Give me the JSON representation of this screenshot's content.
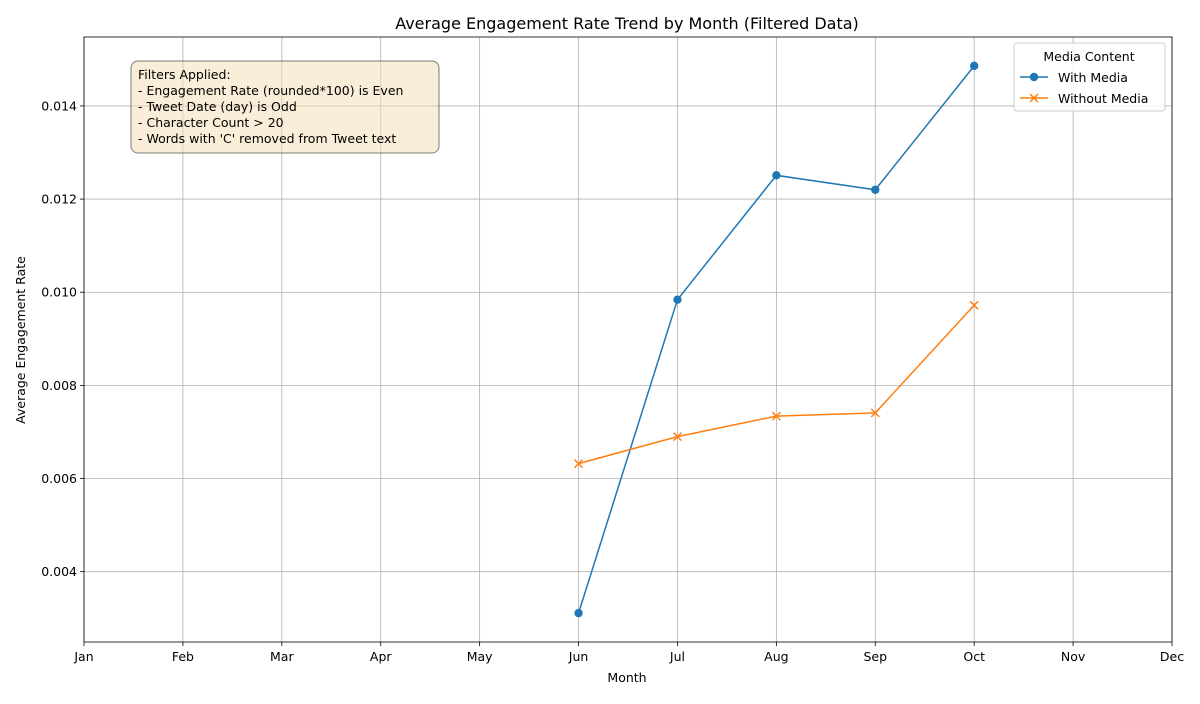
{
  "chart_data": {
    "type": "line",
    "title": "Average Engagement Rate Trend by Month (Filtered Data)",
    "xlabel": "Month",
    "ylabel": "Average Engagement Rate",
    "categories": [
      "Jan",
      "Feb",
      "Mar",
      "Apr",
      "May",
      "Jun",
      "Jul",
      "Aug",
      "Sep",
      "Oct",
      "Nov",
      "Dec"
    ],
    "ylim": [
      0.00249,
      0.01548
    ],
    "yticks": [
      0.004,
      0.006,
      0.008,
      0.01,
      0.012,
      0.014
    ],
    "ytick_labels": [
      "0.004",
      "0.006",
      "0.008",
      "0.010",
      "0.012",
      "0.014"
    ],
    "grid": true,
    "legend": {
      "title": "Media Content",
      "placement": "top-right"
    },
    "series": [
      {
        "name": "With Media",
        "color": "#1f77b4",
        "marker": "circle",
        "x": [
          "Jun",
          "Jul",
          "Aug",
          "Sep",
          "Oct"
        ],
        "values": [
          0.00311,
          0.00984,
          0.01251,
          0.0122,
          0.01486
        ]
      },
      {
        "name": "Without Media",
        "color": "#ff7f0e",
        "marker": "x",
        "x": [
          "Jun",
          "Jul",
          "Aug",
          "Sep",
          "Oct"
        ],
        "values": [
          0.00632,
          0.0069,
          0.00734,
          0.00741,
          0.00972
        ]
      }
    ],
    "annotation": {
      "lines": [
        "Filters Applied:",
        "- Engagement Rate (rounded*100) is Even",
        "- Tweet Date (day) is Odd",
        "- Character Count > 20",
        "- Words with 'C' removed from Tweet text"
      ],
      "background": "#f5deb3",
      "border": "#000000"
    }
  }
}
